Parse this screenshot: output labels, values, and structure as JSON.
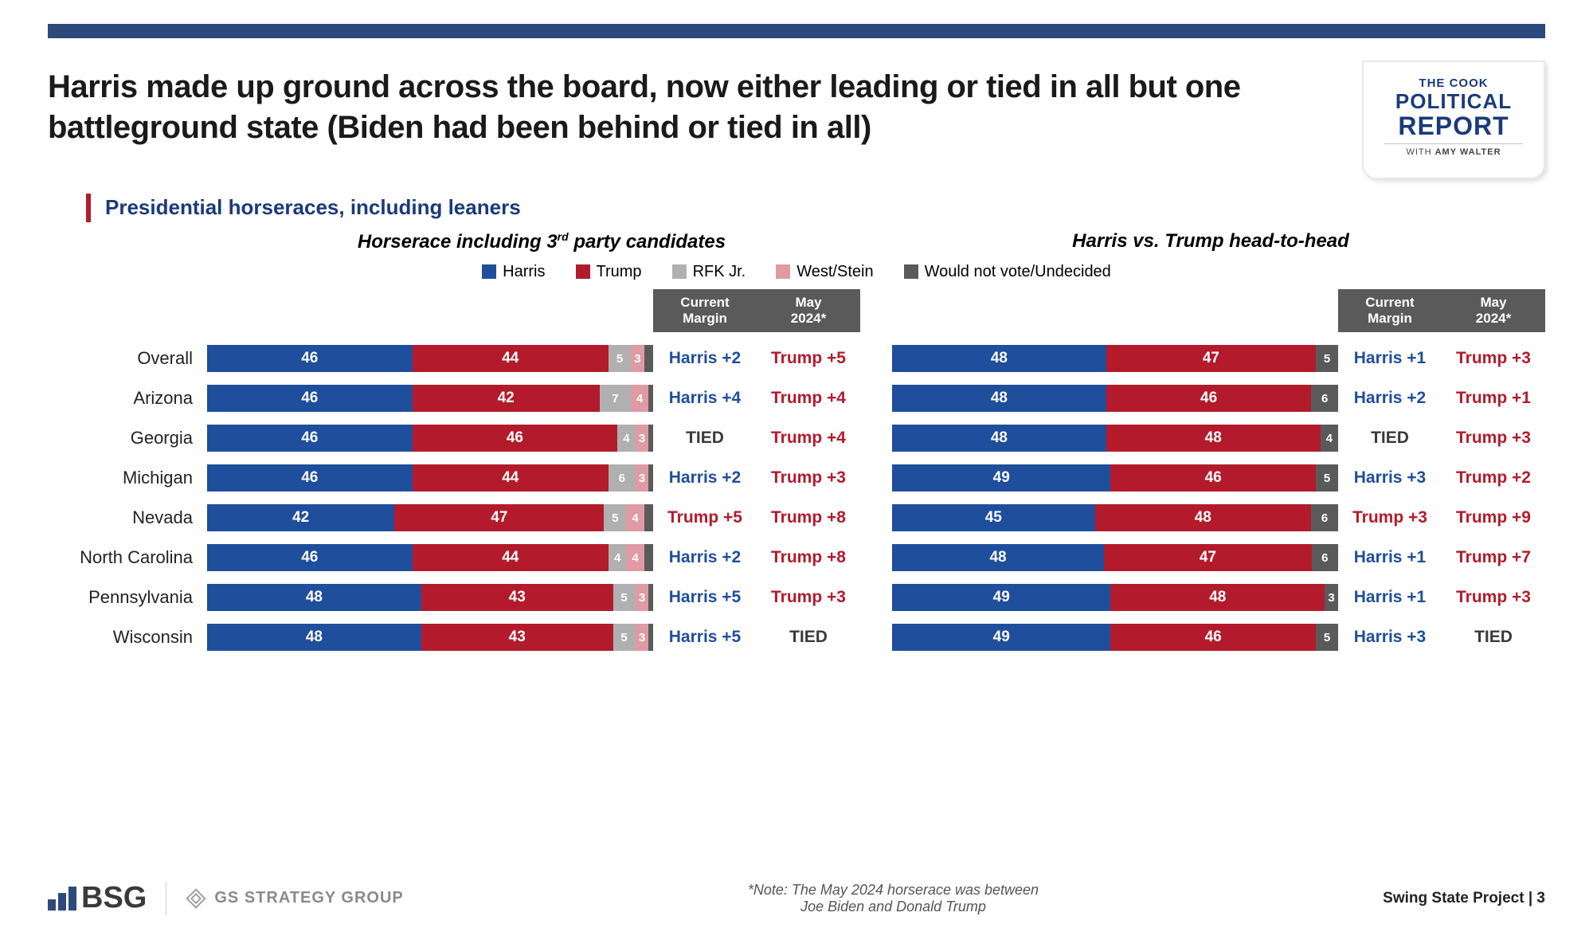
{
  "colors": {
    "harris": "#1f4e9c",
    "trump": "#b31b2c",
    "rfk": "#b0b0b0",
    "west": "#e09aa3",
    "undecided": "#5a5a5a",
    "header_bg": "#5a5a5a",
    "topbar": "#2c4a7c",
    "tied": "#3a3a3a"
  },
  "title": "Harris made up ground across the board, now either leading or tied in all but one battleground state (Biden had been behind or tied in all)",
  "subtitle": "Presidential horseraces, including leaners",
  "cook": {
    "the": "THE COOK",
    "political": "POLITICAL",
    "report": "REPORT",
    "with": "WITH ",
    "amy": "AMY WALTER"
  },
  "col_title_left_prefix": "Horserace including 3",
  "col_title_left_sup": "rd",
  "col_title_left_suffix": " party candidates",
  "col_title_right": "Harris vs. Trump head-to-head",
  "legend": [
    {
      "label": "Harris",
      "color_key": "harris"
    },
    {
      "label": "Trump",
      "color_key": "trump"
    },
    {
      "label": "RFK Jr.",
      "color_key": "rfk"
    },
    {
      "label": "West/Stein",
      "color_key": "west"
    },
    {
      "label": "Would not vote/Undecided",
      "color_key": "undecided"
    }
  ],
  "headers": {
    "current": "Current Margin",
    "may": "May 2024*"
  },
  "states": [
    "Overall",
    "Arizona",
    "Georgia",
    "Michigan",
    "Nevada",
    "North Carolina",
    "Pennsylvania",
    "Wisconsin"
  ],
  "left_chart": {
    "segments": [
      "harris",
      "trump",
      "rfk",
      "west",
      "undecided"
    ],
    "rows": [
      {
        "vals": [
          46,
          44,
          5,
          3,
          2
        ],
        "current": "Harris +2",
        "current_side": "harris",
        "may": "Trump +5",
        "may_side": "trump"
      },
      {
        "vals": [
          46,
          42,
          7,
          4,
          1
        ],
        "current": "Harris +4",
        "current_side": "harris",
        "may": "Trump +4",
        "may_side": "trump"
      },
      {
        "vals": [
          46,
          46,
          4,
          3,
          1
        ],
        "current": "TIED",
        "current_side": "tied",
        "may": "Trump +4",
        "may_side": "trump"
      },
      {
        "vals": [
          46,
          44,
          6,
          3,
          1
        ],
        "current": "Harris +2",
        "current_side": "harris",
        "may": "Trump +3",
        "may_side": "trump"
      },
      {
        "vals": [
          42,
          47,
          5,
          4,
          2
        ],
        "current": "Trump +5",
        "current_side": "trump",
        "may": "Trump +8",
        "may_side": "trump"
      },
      {
        "vals": [
          46,
          44,
          4,
          4,
          2
        ],
        "current": "Harris +2",
        "current_side": "harris",
        "may": "Trump +8",
        "may_side": "trump"
      },
      {
        "vals": [
          48,
          43,
          5,
          3,
          1
        ],
        "current": "Harris +5",
        "current_side": "harris",
        "may": "Trump +3",
        "may_side": "trump"
      },
      {
        "vals": [
          48,
          43,
          5,
          3,
          1
        ],
        "current": "Harris +5",
        "current_side": "harris",
        "may": "TIED",
        "may_side": "tied"
      }
    ]
  },
  "right_chart": {
    "segments": [
      "harris",
      "trump",
      "undecided"
    ],
    "rows": [
      {
        "vals": [
          48,
          47,
          5
        ],
        "current": "Harris +1",
        "current_side": "harris",
        "may": "Trump +3",
        "may_side": "trump"
      },
      {
        "vals": [
          48,
          46,
          6
        ],
        "current": "Harris +2",
        "current_side": "harris",
        "may": "Trump +1",
        "may_side": "trump"
      },
      {
        "vals": [
          48,
          48,
          4
        ],
        "current": "TIED",
        "current_side": "tied",
        "may": "Trump +3",
        "may_side": "trump"
      },
      {
        "vals": [
          49,
          46,
          5
        ],
        "current": "Harris +3",
        "current_side": "harris",
        "may": "Trump +2",
        "may_side": "trump"
      },
      {
        "vals": [
          45,
          48,
          6
        ],
        "current": "Trump +3",
        "current_side": "trump",
        "may": "Trump +9",
        "may_side": "trump"
      },
      {
        "vals": [
          48,
          47,
          6
        ],
        "current": "Harris +1",
        "current_side": "harris",
        "may": "Trump +7",
        "may_side": "trump"
      },
      {
        "vals": [
          49,
          48,
          3
        ],
        "current": "Harris +1",
        "current_side": "harris",
        "may": "Trump +3",
        "may_side": "trump"
      },
      {
        "vals": [
          49,
          46,
          5
        ],
        "current": "Harris +3",
        "current_side": "harris",
        "may": "TIED",
        "may_side": "tied"
      }
    ]
  },
  "note_line1": "*Note: The May 2024 horserace was between",
  "note_line2": "Joe Biden and Donald Trump",
  "footer": {
    "bsg": "BSG",
    "gs": "GS STRATEGY GROUP",
    "right_prefix": "Swing State Project",
    "right_sep": " | ",
    "page": "3"
  }
}
